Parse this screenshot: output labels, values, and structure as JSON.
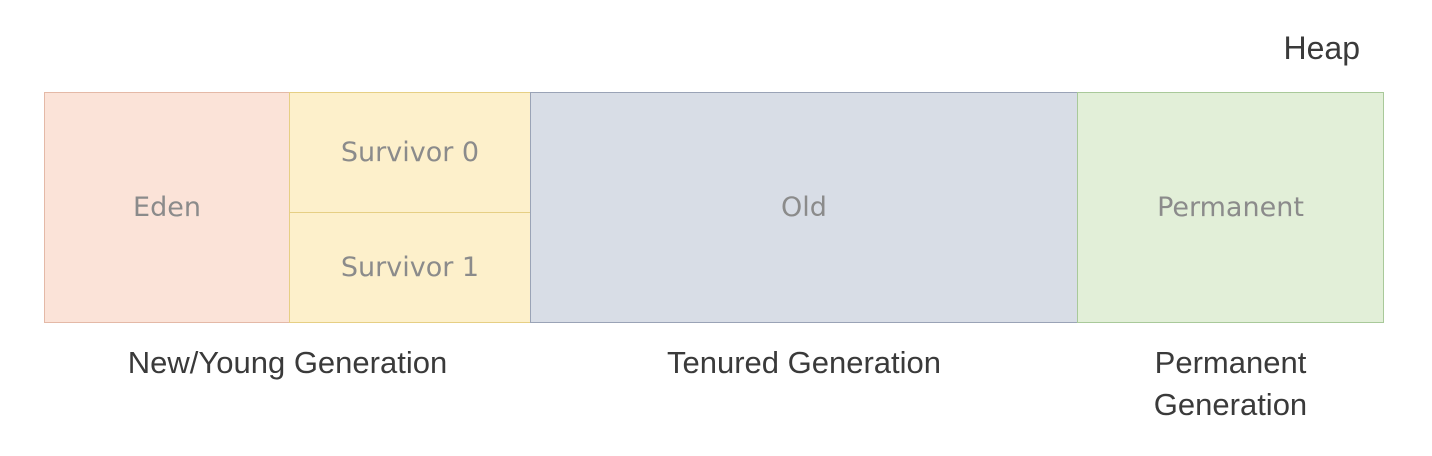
{
  "heap_label": "Heap",
  "regions": {
    "eden": "Eden",
    "survivor0": "Survivor 0",
    "survivor1": "Survivor 1",
    "old": "Old",
    "permanent": "Permanent"
  },
  "generations": {
    "young": "New/Young Generation",
    "tenured": "Tenured Generation",
    "permanent_line1": "Permanent",
    "permanent_line2": "Generation"
  },
  "colors": {
    "eden_fill": "#fbe3d8",
    "survivor_fill": "#fdf0cb",
    "old_fill": "#d8dde6",
    "permanent_fill": "#e2efd8"
  }
}
